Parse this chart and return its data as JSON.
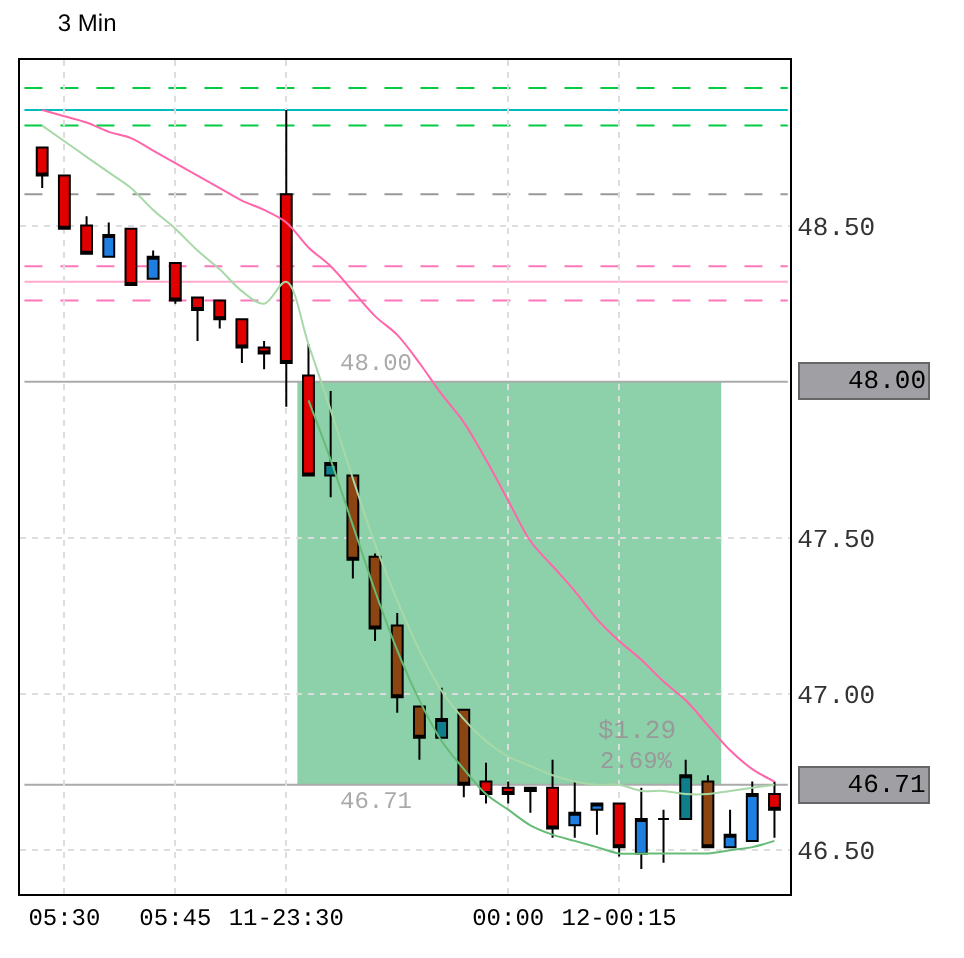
{
  "chart_data": {
    "type": "candlestick",
    "title": "3 Min",
    "categories": [
      null,
      "05:30",
      null,
      null,
      null,
      null,
      "05:45",
      null,
      null,
      null,
      null,
      "11-23:30",
      null,
      null,
      null,
      null,
      null,
      null,
      null,
      null,
      null,
      "00:00",
      null,
      null,
      null,
      null,
      "12-00:15",
      null,
      null,
      null,
      null,
      null,
      null,
      null
    ],
    "ohlc": [
      [
        48.75,
        48.75,
        48.62,
        48.66
      ],
      [
        48.66,
        48.66,
        48.49,
        48.49
      ],
      [
        48.5,
        48.53,
        48.41,
        48.41
      ],
      [
        48.4,
        48.51,
        48.4,
        48.47
      ],
      [
        48.49,
        48.49,
        48.31,
        48.31
      ],
      [
        48.33,
        48.42,
        48.33,
        48.4
      ],
      [
        48.38,
        48.38,
        48.25,
        48.26
      ],
      [
        48.27,
        48.27,
        48.13,
        48.23
      ],
      [
        48.26,
        48.26,
        48.17,
        48.2
      ],
      [
        48.2,
        48.2,
        48.06,
        48.11
      ],
      [
        48.11,
        48.13,
        48.04,
        48.09
      ],
      [
        48.6,
        48.87,
        47.92,
        48.06
      ],
      [
        48.02,
        48.12,
        47.7,
        47.7
      ],
      [
        47.7,
        47.97,
        47.63,
        47.74
      ],
      [
        47.7,
        47.7,
        47.37,
        47.43
      ],
      [
        47.44,
        47.45,
        47.17,
        47.21
      ],
      [
        47.22,
        47.26,
        46.94,
        46.99
      ],
      [
        46.96,
        46.96,
        46.79,
        46.86
      ],
      [
        46.86,
        47.02,
        46.86,
        46.92
      ],
      [
        46.95,
        46.95,
        46.67,
        46.71
      ],
      [
        46.72,
        46.78,
        46.65,
        46.68
      ],
      [
        46.7,
        46.72,
        46.65,
        46.68
      ],
      [
        46.7,
        46.7,
        46.62,
        46.69
      ],
      [
        46.7,
        46.79,
        46.54,
        46.57
      ],
      [
        46.58,
        46.72,
        46.54,
        46.62
      ],
      [
        46.63,
        46.65,
        46.55,
        46.65
      ],
      [
        46.65,
        46.65,
        46.48,
        46.51
      ],
      [
        46.49,
        46.7,
        46.44,
        46.6
      ],
      [
        46.6,
        46.63,
        46.46,
        46.6
      ],
      [
        46.6,
        46.79,
        46.6,
        46.74
      ],
      [
        46.72,
        46.74,
        46.51,
        46.51
      ],
      [
        46.51,
        46.63,
        46.51,
        46.55
      ],
      [
        46.53,
        46.72,
        46.53,
        46.68
      ],
      [
        46.68,
        46.72,
        46.54,
        46.63
      ]
    ],
    "colors": [
      "#e00000",
      "#e00000",
      "#e00000",
      "#1e7fe0",
      "#e00000",
      "#1e7fe0",
      "#e00000",
      "#e00000",
      "#e00000",
      "#e00000",
      "#e00000",
      "#e00000",
      "#e00000",
      "#0e7f8a",
      "#8b4513",
      "#8b4513",
      "#8b4513",
      "#8b4513",
      "#0e7f8a",
      "#8b4513",
      "#e00000",
      "#e00000",
      "#000000",
      "#e00000",
      "#1e7fe0",
      "#1e7fe0",
      "#e00000",
      "#1e7fe0",
      "#000000",
      "#0e7f8a",
      "#8b4513",
      "#1e7fe0",
      "#1e7fe0",
      "#e00000"
    ],
    "series": [
      {
        "type": "line",
        "color": "#ff66aa",
        "values": [
          48.87,
          48.85,
          48.83,
          48.8,
          48.78,
          48.74,
          48.7,
          48.66,
          48.62,
          48.58,
          48.55,
          48.51,
          48.43,
          48.37,
          48.29,
          48.21,
          48.15,
          48.06,
          47.96,
          47.87,
          47.75,
          47.62,
          47.49,
          47.41,
          47.33,
          47.24,
          47.17,
          47.11,
          47.04,
          46.98,
          46.9,
          46.82,
          46.76,
          46.72
        ]
      },
      {
        "type": "line",
        "color": "#a8d8a8",
        "values": [
          48.82,
          48.77,
          48.72,
          48.67,
          48.62,
          48.55,
          48.49,
          48.42,
          48.36,
          48.29,
          48.25,
          48.32,
          48.12,
          47.91,
          47.69,
          47.48,
          47.3,
          47.14,
          47.01,
          46.92,
          46.85,
          46.8,
          46.77,
          46.74,
          46.72,
          46.71,
          46.71,
          46.69,
          46.69,
          46.68,
          46.68,
          46.69,
          46.7,
          46.71
        ]
      },
      {
        "type": "line",
        "color": "#66bb77",
        "values": [
          null,
          null,
          null,
          null,
          null,
          null,
          null,
          null,
          null,
          null,
          null,
          null,
          47.94,
          47.75,
          47.54,
          47.33,
          47.14,
          46.98,
          46.85,
          46.76,
          46.68,
          46.63,
          46.58,
          46.55,
          46.53,
          46.51,
          46.49,
          46.49,
          46.49,
          46.49,
          46.49,
          46.5,
          46.51,
          46.53
        ]
      }
    ],
    "ylim": [
      46.36,
      49.03
    ],
    "yticks": [
      {
        "value": 46.5,
        "label": "46.50"
      },
      {
        "value": 47.0,
        "label": "47.00"
      },
      {
        "value": 47.5,
        "label": "47.50"
      },
      {
        "value": 48.5,
        "label": "48.50"
      }
    ],
    "ref_lines": [
      {
        "axis": "y",
        "value": 48.94,
        "color": "#00cc44",
        "line_style": "dashed"
      },
      {
        "axis": "y",
        "value": 48.87,
        "color": "#00bbbb",
        "line_style": "solid"
      },
      {
        "axis": "y",
        "value": 48.82,
        "color": "#00cc44",
        "line_style": "dashed"
      },
      {
        "axis": "y",
        "value": 48.6,
        "color": "#999999",
        "line_style": "dashed"
      },
      {
        "axis": "y",
        "value": 48.37,
        "color": "#ff77bb",
        "line_style": "dashed"
      },
      {
        "axis": "y",
        "value": 48.32,
        "color": "#ffaacc",
        "line_style": "solid"
      },
      {
        "axis": "y",
        "value": 48.26,
        "color": "#ff77bb",
        "line_style": "dashed"
      },
      {
        "axis": "y",
        "value": 48.0,
        "label": "48.00",
        "color": "#aaaaaa",
        "line_style": "solid"
      },
      {
        "axis": "y",
        "value": 46.71,
        "label": "46.71",
        "color": "#aaaaaa",
        "line_style": "solid"
      }
    ],
    "bands": [
      {
        "axis": "y",
        "from": 46.71,
        "to": 48.0,
        "color": "#8dd1aa"
      }
    ],
    "annotations": [
      {
        "text": "48.00",
        "x": "11-23:30",
        "y": 48.0
      },
      {
        "text": "46.71",
        "x": "11-23:30",
        "y": 46.71
      },
      "$1.29",
      "2.69%"
    ],
    "grid": true
  }
}
